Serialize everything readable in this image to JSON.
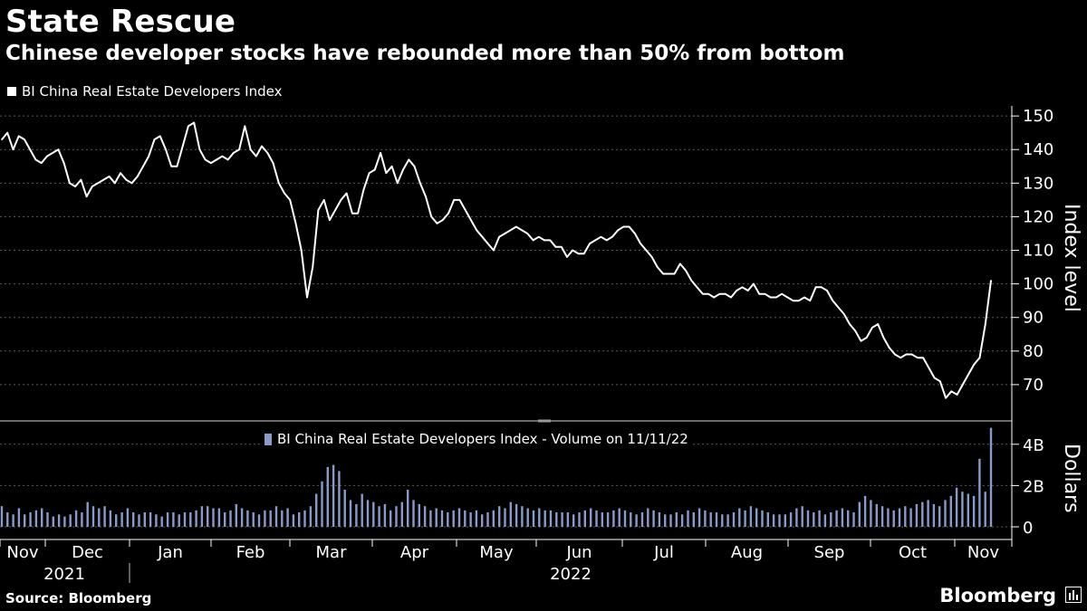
{
  "header": {
    "title": "State Rescue",
    "subtitle": "Chinese developer stocks have rebounded more than 50% from bottom"
  },
  "footer": {
    "source": "Source: Bloomberg",
    "brand": "Bloomberg"
  },
  "colors": {
    "line": "#ffffff",
    "volume": "#8b9ac6",
    "grid": "#5a5a5a",
    "background": "#000000"
  },
  "chart_data": [
    {
      "type": "line",
      "series": [
        {
          "name": "BI China Real Estate Developers Index",
          "values": [
            143,
            145,
            140,
            144,
            143,
            140,
            137,
            136,
            138,
            139,
            140,
            136,
            130,
            129,
            131,
            126,
            129,
            130,
            131,
            132,
            130,
            133,
            131,
            130,
            132,
            135,
            138,
            143,
            144,
            140,
            135,
            135,
            141,
            147,
            148,
            140,
            137,
            136,
            137,
            138,
            137,
            139,
            140,
            147,
            140,
            138,
            141,
            139,
            136,
            130,
            127,
            125,
            118,
            110,
            96,
            105,
            122,
            125,
            119,
            122,
            125,
            127,
            121,
            121,
            128,
            133,
            134,
            139,
            133,
            135,
            130,
            134,
            137,
            135,
            130,
            126,
            120,
            118,
            119,
            121,
            125,
            125,
            122,
            119,
            116,
            114,
            112,
            110,
            114,
            115,
            116,
            117,
            116,
            115,
            113,
            114,
            113,
            113,
            111,
            111,
            108,
            110,
            109,
            109,
            112,
            113,
            114,
            113,
            114,
            116,
            117,
            117,
            115,
            112,
            110,
            108,
            105,
            103,
            103,
            103,
            106,
            104,
            101,
            99,
            97,
            97,
            96,
            97,
            97,
            96,
            98,
            99,
            98,
            100,
            97,
            97,
            96,
            96,
            97,
            96,
            95,
            95,
            96,
            95,
            99,
            99,
            98,
            95,
            93,
            91,
            88,
            86,
            83,
            84,
            87,
            88,
            84,
            81,
            79,
            78,
            79,
            79,
            78,
            78,
            75,
            72,
            71,
            66,
            68,
            67,
            70,
            73,
            76,
            78,
            88,
            101
          ]
        }
      ],
      "xticks": [
        "Nov",
        "Dec",
        "Jan",
        "Feb",
        "Mar",
        "Apr",
        "May",
        "Jun",
        "Jul",
        "Aug",
        "Sep",
        "Oct",
        "Nov"
      ],
      "year_labels": [
        "2021",
        "2022"
      ],
      "yticks": [
        "150",
        "140",
        "130",
        "120",
        "110",
        "100",
        "90",
        "80",
        "70"
      ],
      "ylabel": "Index level",
      "ylim": [
        60,
        153
      ]
    },
    {
      "type": "bar",
      "legend": "BI China Real Estate Developers Index - Volume on 11/11/22",
      "series": [
        {
          "name": "Volume",
          "values": [
            1.0,
            0.7,
            0.6,
            0.9,
            0.6,
            0.7,
            0.8,
            0.9,
            0.7,
            0.5,
            0.6,
            0.5,
            0.6,
            0.8,
            0.7,
            1.2,
            1.0,
            0.9,
            1.0,
            0.8,
            0.6,
            0.7,
            0.9,
            0.7,
            0.6,
            0.7,
            0.7,
            0.6,
            0.5,
            0.7,
            0.7,
            0.6,
            0.7,
            0.7,
            0.8,
            1.0,
            1.0,
            0.9,
            0.9,
            0.7,
            0.8,
            1.1,
            0.9,
            0.8,
            0.7,
            0.6,
            0.8,
            0.8,
            1.0,
            0.8,
            0.9,
            0.6,
            0.7,
            0.8,
            1.0,
            1.6,
            2.2,
            2.9,
            3.0,
            2.7,
            1.8,
            1.3,
            1.1,
            1.6,
            1.3,
            1.2,
            1.0,
            1.1,
            0.8,
            1.0,
            1.2,
            1.8,
            1.3,
            1.1,
            1.0,
            0.8,
            0.9,
            0.8,
            0.7,
            0.8,
            0.9,
            0.8,
            0.7,
            0.8,
            0.6,
            0.7,
            0.8,
            1.0,
            0.9,
            1.2,
            1.1,
            1.0,
            0.9,
            0.8,
            0.9,
            0.8,
            0.8,
            0.7,
            0.7,
            0.7,
            0.6,
            0.7,
            0.8,
            0.9,
            0.8,
            0.7,
            0.7,
            0.8,
            0.9,
            0.8,
            0.7,
            0.6,
            0.7,
            0.9,
            0.8,
            0.7,
            0.6,
            0.6,
            0.7,
            0.6,
            0.8,
            0.7,
            0.9,
            0.8,
            0.7,
            0.7,
            0.6,
            0.6,
            0.7,
            0.9,
            0.8,
            1.0,
            0.9,
            0.8,
            0.7,
            0.6,
            0.6,
            0.6,
            0.7,
            0.9,
            1.0,
            0.8,
            0.7,
            0.8,
            0.6,
            0.7,
            0.8,
            0.9,
            0.8,
            0.7,
            1.2,
            1.5,
            1.3,
            1.1,
            1.0,
            0.9,
            0.8,
            0.9,
            1.0,
            0.9,
            1.1,
            1.2,
            1.3,
            1.1,
            1.0,
            1.3,
            1.5,
            1.9,
            1.7,
            1.6,
            1.5,
            3.3,
            1.7,
            4.8
          ]
        }
      ],
      "yticks": [
        "4B",
        "2B",
        "0"
      ],
      "ylabel": "Dollars",
      "ylim": [
        0,
        5
      ]
    }
  ]
}
